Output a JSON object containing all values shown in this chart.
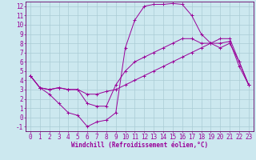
{
  "background_color": "#cce8ef",
  "grid_color": "#aaccd4",
  "line_color": "#990099",
  "spine_color": "#660066",
  "xlim": [
    -0.5,
    23.5
  ],
  "ylim": [
    -1.5,
    12.5
  ],
  "xlabel": "Windchill (Refroidissement éolien,°C)",
  "xlabel_fontsize": 5.5,
  "tick_fontsize": 5.5,
  "xticks": [
    0,
    1,
    2,
    3,
    4,
    5,
    6,
    7,
    8,
    9,
    10,
    11,
    12,
    13,
    14,
    15,
    16,
    17,
    18,
    19,
    20,
    21,
    22,
    23
  ],
  "yticks": [
    -1,
    0,
    1,
    2,
    3,
    4,
    5,
    6,
    7,
    8,
    9,
    10,
    11,
    12
  ],
  "line1_x": [
    0,
    1,
    2,
    3,
    4,
    5,
    6,
    7,
    8,
    9,
    10,
    11,
    12,
    13,
    14,
    15,
    16,
    17,
    18,
    19,
    20,
    21,
    22,
    23
  ],
  "line1_y": [
    4.5,
    3.2,
    3.0,
    3.2,
    3.0,
    3.0,
    2.5,
    2.5,
    2.8,
    3.0,
    3.5,
    4.0,
    4.5,
    5.0,
    5.5,
    6.0,
    6.5,
    7.0,
    7.5,
    8.0,
    8.5,
    8.5,
    6.0,
    3.5
  ],
  "line2_x": [
    0,
    1,
    2,
    3,
    4,
    5,
    6,
    7,
    8,
    9,
    10,
    11,
    12,
    13,
    14,
    15,
    16,
    17,
    18,
    19,
    20,
    21,
    22,
    23
  ],
  "line2_y": [
    4.5,
    3.2,
    2.5,
    1.5,
    0.5,
    0.2,
    -1.0,
    -0.5,
    -0.3,
    0.5,
    7.5,
    10.5,
    12.0,
    12.2,
    12.2,
    12.3,
    12.2,
    11.0,
    9.0,
    8.0,
    8.0,
    8.2,
    5.5,
    3.5
  ],
  "line3_x": [
    0,
    1,
    2,
    3,
    4,
    5,
    6,
    7,
    8,
    9,
    10,
    11,
    12,
    13,
    14,
    15,
    16,
    17,
    18,
    19,
    20,
    21,
    22,
    23
  ],
  "line3_y": [
    4.5,
    3.2,
    3.0,
    3.2,
    3.0,
    3.0,
    1.5,
    1.2,
    1.2,
    3.5,
    5.0,
    6.0,
    6.5,
    7.0,
    7.5,
    8.0,
    8.5,
    8.5,
    8.0,
    8.0,
    7.5,
    8.0,
    6.0,
    3.5
  ]
}
